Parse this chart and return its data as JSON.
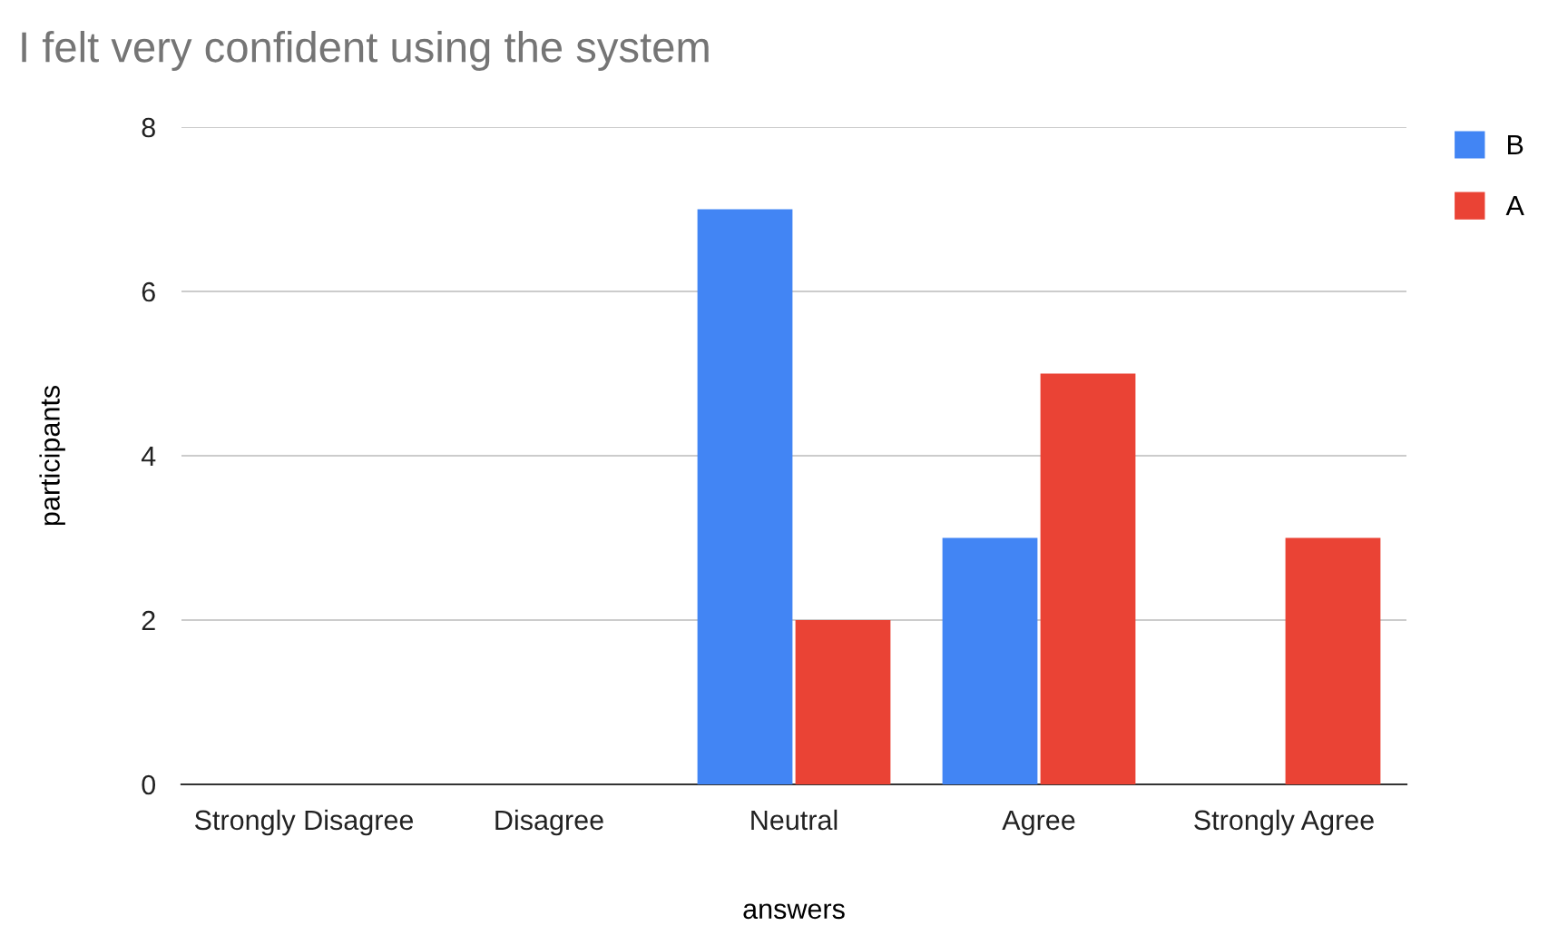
{
  "chart_data": {
    "type": "bar",
    "title": "I felt very confident using the system",
    "xlabel": "answers",
    "ylabel": "participants",
    "categories": [
      "Strongly Disagree",
      "Disagree",
      "Neutral",
      "Agree",
      "Strongly Agree"
    ],
    "series": [
      {
        "name": "B",
        "color": "#4285f4",
        "values": [
          0,
          0,
          7,
          3,
          0
        ]
      },
      {
        "name": "A",
        "color": "#ea4335",
        "values": [
          0,
          0,
          2,
          5,
          3
        ]
      }
    ],
    "ylim": [
      0,
      8
    ],
    "yticks": [
      0,
      2,
      4,
      6,
      8
    ],
    "grid": "y",
    "legend": "top right"
  }
}
